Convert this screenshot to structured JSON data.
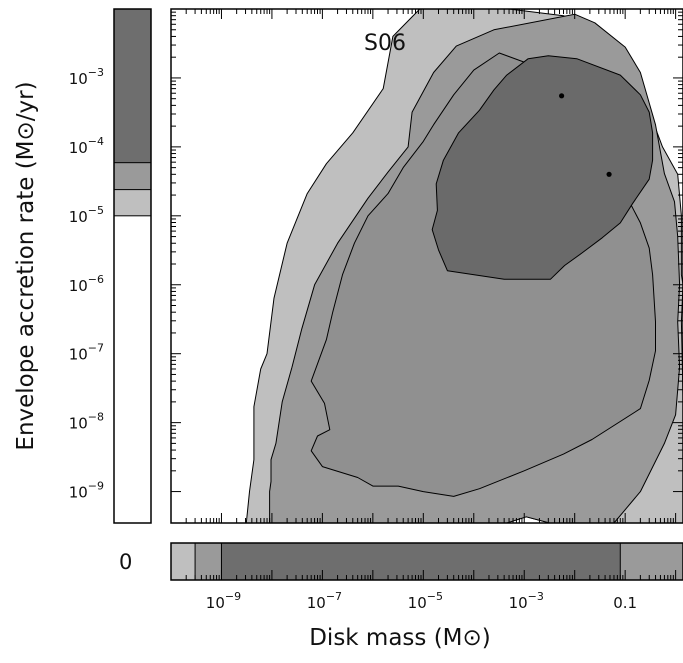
{
  "chart_data": {
    "type": "contour",
    "title": "S06",
    "xlabel": "Disk mass (M⊙)",
    "ylabel": "Envelope accretion rate (M⊙/yr)",
    "x_scale": "log",
    "y_scale": "log",
    "xlim": [
      1e-10,
      1.4
    ],
    "ylim": [
      3.5e-10,
      0.01
    ],
    "x_tick_labels": [
      {
        "value": 1e-09,
        "mantissa": "10",
        "exp": "−9"
      },
      {
        "value": 1e-07,
        "mantissa": "10",
        "exp": "−7"
      },
      {
        "value": 1e-05,
        "mantissa": "10",
        "exp": "−5"
      },
      {
        "value": 0.001,
        "mantissa": "10",
        "exp": "−3"
      },
      {
        "value": 0.1,
        "mantissa": "0.1",
        "exp": ""
      }
    ],
    "y_tick_labels": [
      {
        "value": 1e-09,
        "mantissa": "10",
        "exp": "−9"
      },
      {
        "value": 1e-08,
        "mantissa": "10",
        "exp": "−8"
      },
      {
        "value": 1e-07,
        "mantissa": "10",
        "exp": "−7"
      },
      {
        "value": 1e-06,
        "mantissa": "10",
        "exp": "−6"
      },
      {
        "value": 1e-05,
        "mantissa": "10",
        "exp": "−5"
      },
      {
        "value": 0.0001,
        "mantissa": "10",
        "exp": "−4"
      },
      {
        "value": 0.001,
        "mantissa": "10",
        "exp": "−3"
      }
    ],
    "zero_label": "0",
    "colors": {
      "level_1": "#bfbfbf",
      "level_2": "#9a9a9a",
      "level_3": "#6e6e6e",
      "background": "#ffffff"
    },
    "contours": [
      {
        "level": 1,
        "polygon": [
          [
            3.1e-09,
            3.5e-10
          ],
          [
            3.7e-08,
            3.5e-10
          ],
          [
            0.00045,
            3.5e-10
          ],
          [
            0.0011,
            4.3e-10
          ],
          [
            0.0032,
            3.5e-10
          ],
          [
            1.4,
            3.5e-10
          ],
          [
            1.4,
            1e-09
          ],
          [
            1.4,
            2.4e-08
          ],
          [
            1.3,
            2.9e-07
          ],
          [
            1.4,
            1e-06
          ],
          [
            1.3,
            1.4e-06
          ],
          [
            1.3,
            1e-05
          ],
          [
            1.1,
            4e-05
          ],
          [
            0.55,
            0.0001
          ],
          [
            0.22,
            0.0006
          ],
          [
            0.12,
            0.0013
          ],
          [
            0.025,
            0.005
          ],
          [
            0.006,
            0.008
          ],
          [
            0.0005,
            0.01
          ],
          [
            8.5e-06,
            0.01
          ],
          [
            2.5e-06,
            0.004
          ],
          [
            1.6e-06,
            0.0007
          ],
          [
            4e-07,
            0.00016
          ],
          [
            1.2e-07,
            5.7e-05
          ],
          [
            5e-08,
            2.1e-05
          ],
          [
            2e-08,
            4e-06
          ],
          [
            1.1e-08,
            6.4e-07
          ],
          [
            8e-09,
            1e-07
          ],
          [
            6e-09,
            6e-08
          ],
          [
            4.4e-09,
            1.7e-08
          ],
          [
            4.4e-09,
            2.9e-09
          ],
          [
            3.6e-09,
            1e-09
          ]
        ]
      },
      {
        "level": 2,
        "polygon": [
          [
            9e-09,
            3.5e-10
          ],
          [
            0.00045,
            3.5e-10
          ],
          [
            0.0011,
            4.3e-10
          ],
          [
            0.0032,
            3.5e-10
          ],
          [
            0.06,
            3.5e-10
          ],
          [
            0.2,
            1e-09
          ],
          [
            0.6,
            5e-09
          ],
          [
            1,
            1.3e-08
          ],
          [
            1.2,
            6.4e-08
          ],
          [
            1.1,
            2.9e-07
          ],
          [
            1.2,
            1e-06
          ],
          [
            1.1,
            5e-06
          ],
          [
            0.95,
            1.6e-05
          ],
          [
            0.6,
            4.1e-05
          ],
          [
            0.4,
            0.00021
          ],
          [
            0.2,
            0.0012
          ],
          [
            0.1,
            0.0028
          ],
          [
            0.025,
            0.0063
          ],
          [
            0.01,
            0.0084
          ],
          [
            0.00025,
            0.005
          ],
          [
            4.5e-05,
            0.0029
          ],
          [
            1.6e-05,
            0.0012
          ],
          [
            6e-06,
            0.00032
          ],
          [
            5e-06,
            0.0001
          ],
          [
            2e-06,
            4.3e-05
          ],
          [
            8e-07,
            1.8e-05
          ],
          [
            2e-07,
            4e-06
          ],
          [
            7e-08,
            1e-06
          ],
          [
            3.9e-08,
            2.3e-07
          ],
          [
            2.5e-08,
            6.4e-08
          ],
          [
            1.6e-08,
            2e-08
          ],
          [
            1.2e-08,
            5e-09
          ],
          [
            9.6e-09,
            2.9e-09
          ],
          [
            9.6e-09,
            1.4e-09
          ],
          [
            9e-09,
            1e-09
          ]
        ]
      },
      {
        "level": 3,
        "polygon": [
          [
            6e-08,
            3.9e-09
          ],
          [
            1e-07,
            2.3e-09
          ],
          [
            5e-07,
            1.6e-09
          ],
          [
            1e-06,
            1.2e-09
          ],
          [
            3.2e-06,
            1.2e-09
          ],
          [
            1e-05,
            1e-09
          ],
          [
            4e-05,
            8.5e-10
          ],
          [
            0.00013,
            1.1e-09
          ],
          [
            0.001,
            2e-09
          ],
          [
            0.006,
            3.5e-09
          ],
          [
            0.022,
            5.7e-09
          ],
          [
            0.2,
            1.6e-08
          ],
          [
            0.3,
            4.1e-08
          ],
          [
            0.4,
            1.1e-07
          ],
          [
            0.4,
            2.9e-07
          ],
          [
            0.35,
            1.4e-06
          ],
          [
            0.3,
            3.4e-06
          ],
          [
            0.2,
            7.9e-06
          ],
          [
            0.1,
            2.1e-05
          ],
          [
            0.06,
            3.9e-05
          ],
          [
            0.035,
            0.00016
          ],
          [
            0.025,
            0.00034
          ],
          [
            0.011,
            0.00063
          ],
          [
            0.005,
            0.0011
          ],
          [
            0.00032,
            0.0023
          ],
          [
            0.0001,
            0.0013
          ],
          [
            4e-05,
            0.00057
          ],
          [
            1.6e-05,
            0.00021
          ],
          [
            1e-05,
            0.00012
          ],
          [
            4e-06,
            5e-05
          ],
          [
            2e-06,
            2.1e-05
          ],
          [
            8e-07,
            1e-05
          ],
          [
            4.3e-07,
            4e-06
          ],
          [
            2.5e-07,
            1.4e-06
          ],
          [
            1.6e-07,
            4e-07
          ],
          [
            1.2e-07,
            1.6e-07
          ],
          [
            6e-08,
            4e-08
          ],
          [
            1.1e-07,
            1.9e-08
          ],
          [
            1.4e-07,
            7.9e-09
          ],
          [
            8e-08,
            6.4e-09
          ]
        ]
      },
      {
        "level": 4,
        "polygon": [
          [
            3e-05,
            1.6e-06
          ],
          [
            0.0004,
            1.2e-06
          ],
          [
            0.0033,
            1.2e-06
          ],
          [
            0.0063,
            1.9e-06
          ],
          [
            0.014,
            2.9e-06
          ],
          [
            0.035,
            4.8e-06
          ],
          [
            0.08,
            7.9e-06
          ],
          [
            0.14,
            1.5e-05
          ],
          [
            0.3,
            3.4e-05
          ],
          [
            0.35,
            6.4e-05
          ],
          [
            0.35,
            0.00016
          ],
          [
            0.3,
            0.00032
          ],
          [
            0.2,
            0.00057
          ],
          [
            0.08,
            0.0011
          ],
          [
            0.011,
            0.0019
          ],
          [
            0.003,
            0.0021
          ],
          [
            0.0012,
            0.0019
          ],
          [
            0.00045,
            0.0011
          ],
          [
            0.00025,
            0.00067
          ],
          [
            0.00013,
            0.00034
          ],
          [
            5e-05,
            0.00016
          ],
          [
            2.5e-05,
            6.4e-05
          ],
          [
            1.8e-05,
            2.9e-05
          ],
          [
            1.9e-05,
            1.2e-05
          ],
          [
            1.5e-05,
            6.3e-06
          ],
          [
            2e-05,
            3.2e-06
          ]
        ]
      }
    ],
    "points": [
      {
        "x": 0.0055,
        "y": 0.00055
      },
      {
        "x": 0.048,
        "y": 4e-05
      }
    ],
    "y_marginal": [
      {
        "from": 1e-05,
        "to": 0.01,
        "level": 1
      },
      {
        "from": 2.4e-05,
        "to": 0.01,
        "level": 2
      },
      {
        "from": 5.9e-05,
        "to": 0.01,
        "level": 3
      }
    ],
    "x_marginal": [
      {
        "from": 1e-10,
        "to": 1.4,
        "level": 1
      },
      {
        "from": 3e-10,
        "to": 1.4,
        "level": 2
      },
      {
        "from": 1e-09,
        "to": 0.08,
        "level": 3
      }
    ]
  }
}
